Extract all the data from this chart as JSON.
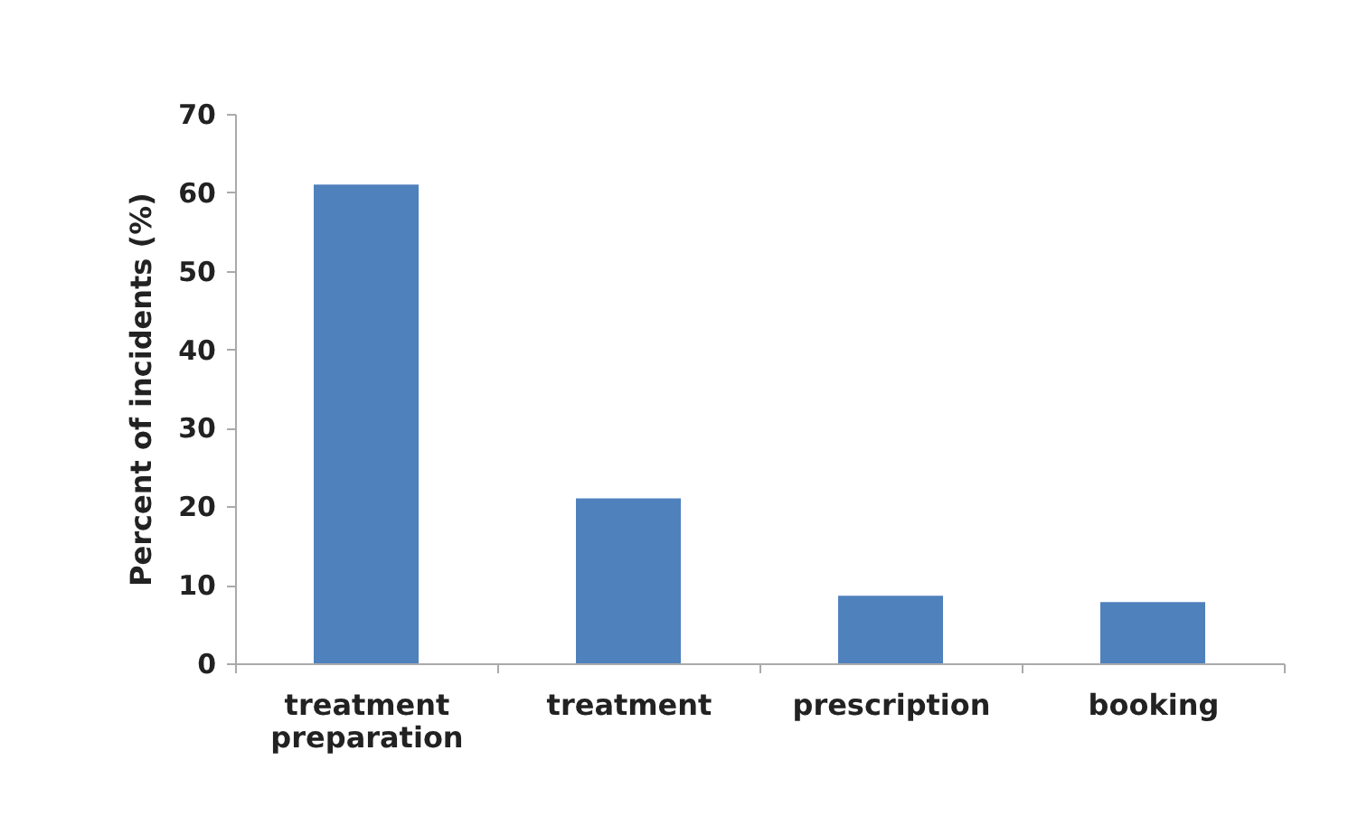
{
  "chart_data": {
    "type": "bar",
    "ylabel": "Percent of incidents (%)",
    "categories": [
      "treatment preparation",
      "treatment",
      "prescription",
      "booking"
    ],
    "values": [
      61,
      21,
      8.6,
      7.8
    ],
    "color": "#4f81bd",
    "ylim": [
      0,
      70
    ],
    "yticks": [
      0,
      10,
      20,
      30,
      40,
      50,
      60,
      70
    ],
    "grid": false
  }
}
